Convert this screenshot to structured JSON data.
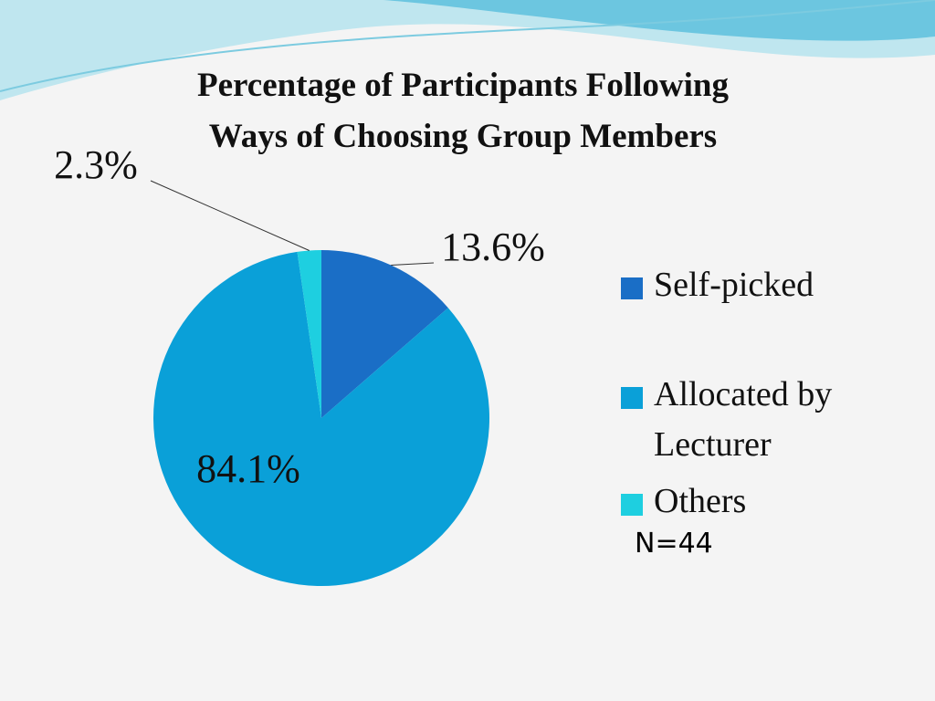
{
  "chart_data": {
    "type": "pie",
    "title": "Percentage of Participants Following Ways of Choosing Group Members",
    "categories": [
      "Self-picked",
      "Allocated by Lecturer",
      "Others"
    ],
    "values": [
      13.6,
      84.1,
      2.3
    ],
    "value_labels": [
      "13.6%",
      "84.1%",
      "2.3%"
    ],
    "colors": [
      "#1a6ec6",
      "#0aa0d8",
      "#1ecfe0"
    ],
    "legend": "right",
    "annotation": "N=44"
  }
}
